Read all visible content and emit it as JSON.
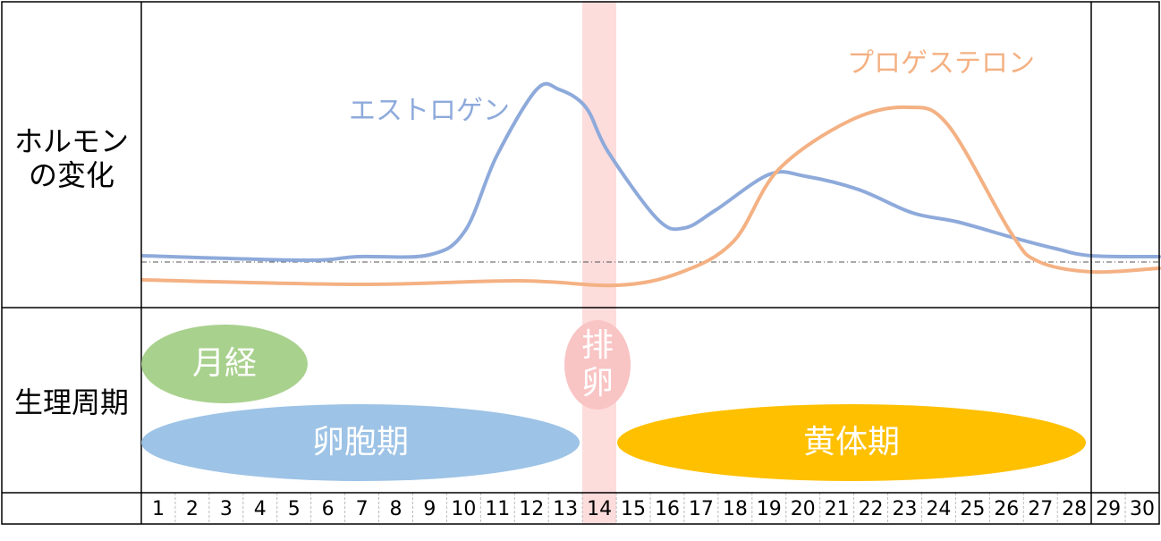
{
  "hormone_label": [
    "ホルモン",
    "の変化"
  ],
  "cycle_label": "生理周期",
  "curves": {
    "estrogen": "エストロゲン",
    "progesterone": "プロゲステロン"
  },
  "phases": {
    "menstruation": "月経",
    "follicular": "卵胞期",
    "ovulation": [
      "排",
      "卵"
    ],
    "luteal": "黄体期"
  },
  "days": [
    1,
    2,
    3,
    4,
    5,
    6,
    7,
    8,
    9,
    10,
    11,
    12,
    13,
    14,
    15,
    16,
    17,
    18,
    19,
    20,
    21,
    22,
    23,
    24,
    25,
    26,
    27,
    28,
    29,
    30
  ]
}
